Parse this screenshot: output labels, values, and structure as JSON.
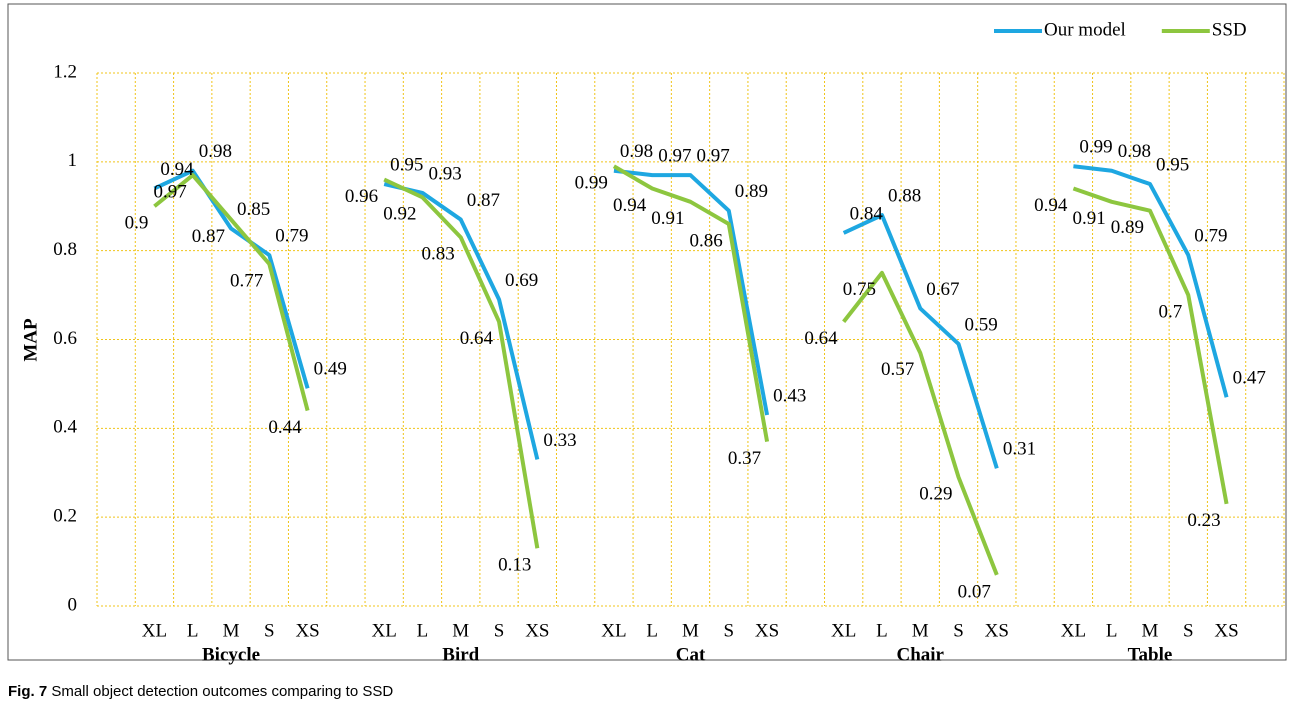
{
  "chart_data": {
    "type": "line",
    "ylabel": "MAP",
    "categories": [
      null,
      "XL",
      "L",
      "M",
      "S",
      "XS",
      null,
      "XL",
      "L",
      "M",
      "S",
      "XS",
      null,
      "XL",
      "L",
      "M",
      "S",
      "XS",
      null,
      "XL",
      "L",
      "M",
      "S",
      "XS",
      null,
      "XL",
      "L",
      "M",
      "S",
      "XS",
      null
    ],
    "groups": [
      "Bicycle",
      "Bird",
      "Cat",
      "Chair",
      "Table"
    ],
    "series": [
      {
        "name": "Our model",
        "color": "#1ea7e1",
        "values": [
          null,
          0.94,
          0.98,
          0.85,
          0.79,
          0.49,
          null,
          0.95,
          0.93,
          0.87,
          0.69,
          0.33,
          null,
          0.98,
          0.97,
          0.97,
          0.89,
          0.43,
          null,
          0.84,
          0.88,
          0.67,
          0.59,
          0.31,
          null,
          0.99,
          0.98,
          0.95,
          0.79,
          0.47,
          null
        ]
      },
      {
        "name": "SSD",
        "color": "#8dc63f",
        "values": [
          null,
          0.9,
          0.97,
          0.87,
          0.77,
          0.44,
          null,
          0.96,
          0.92,
          0.83,
          0.64,
          0.13,
          null,
          0.99,
          0.94,
          0.91,
          0.86,
          0.37,
          null,
          0.64,
          0.75,
          0.57,
          0.29,
          0.07,
          null,
          0.94,
          0.91,
          0.89,
          0.7,
          0.23,
          null
        ]
      }
    ],
    "ylim": [
      0,
      1.2
    ],
    "yticks": [
      0,
      0.2,
      0.4,
      0.6,
      0.8,
      1,
      1.2
    ],
    "grid": true,
    "legend": "top-right",
    "caption": {
      "label": "Fig. 7",
      "text": "Small object detection outcomes comparing to SSD"
    }
  }
}
